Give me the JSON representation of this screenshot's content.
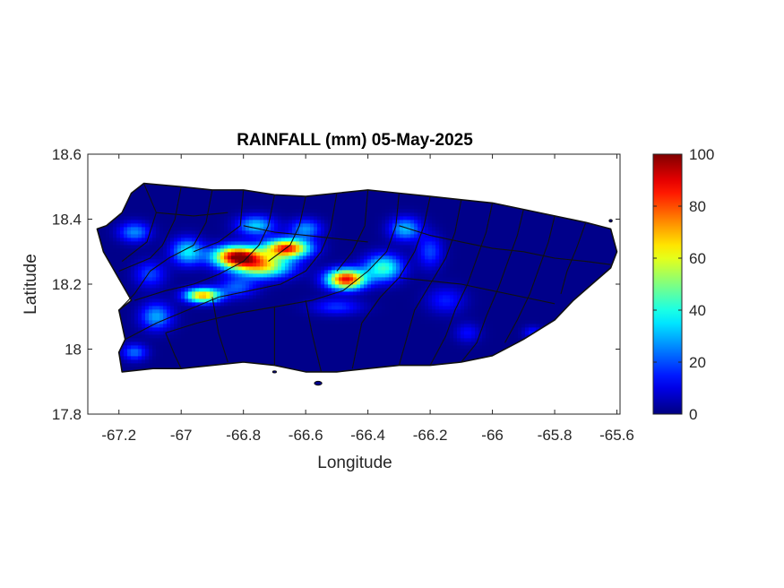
{
  "chart_data": {
    "type": "heatmap",
    "title": "RAINFALL (mm) 05-May-2025",
    "xlabel": "Longitude",
    "ylabel": "Latitude",
    "xlim": [
      -67.3,
      -65.59
    ],
    "ylim": [
      17.8,
      18.6
    ],
    "xticks": [
      -67.2,
      -67,
      -66.8,
      -66.6,
      -66.4,
      -66.2,
      -66,
      -65.8,
      -65.6
    ],
    "xtick_labels": [
      "-67.2",
      "-67",
      "-66.8",
      "-66.6",
      "-66.4",
      "-66.2",
      "-66",
      "-65.8",
      "-65.6"
    ],
    "yticks": [
      17.8,
      18,
      18.2,
      18.4,
      18.6
    ],
    "ytick_labels": [
      "17.8",
      "18",
      "18.2",
      "18.4",
      "18.6"
    ],
    "colorbar": {
      "colormap": "jet",
      "limits": [
        0,
        100
      ],
      "ticks": [
        0,
        20,
        40,
        60,
        80,
        100
      ],
      "tick_labels": [
        "0",
        "20",
        "40",
        "60",
        "80",
        "100"
      ],
      "location": "right"
    },
    "background_value": 1,
    "rain_centers": [
      {
        "lon": -66.82,
        "lat": 18.285,
        "value": 92,
        "spread_lon": 0.075,
        "spread_lat": 0.032
      },
      {
        "lon": -66.66,
        "lat": 18.31,
        "value": 85,
        "spread_lon": 0.07,
        "spread_lat": 0.028
      },
      {
        "lon": -66.74,
        "lat": 18.255,
        "value": 60,
        "spread_lon": 0.09,
        "spread_lat": 0.035
      },
      {
        "lon": -66.47,
        "lat": 18.215,
        "value": 88,
        "spread_lon": 0.06,
        "spread_lat": 0.03
      },
      {
        "lon": -66.35,
        "lat": 18.25,
        "value": 42,
        "spread_lon": 0.06,
        "spread_lat": 0.04
      },
      {
        "lon": -66.93,
        "lat": 18.165,
        "value": 70,
        "spread_lon": 0.055,
        "spread_lat": 0.022
      },
      {
        "lon": -66.98,
        "lat": 18.3,
        "value": 35,
        "spread_lon": 0.05,
        "spread_lat": 0.04
      },
      {
        "lon": -66.76,
        "lat": 18.38,
        "value": 32,
        "spread_lon": 0.06,
        "spread_lat": 0.03
      },
      {
        "lon": -66.6,
        "lat": 18.37,
        "value": 26,
        "spread_lon": 0.05,
        "spread_lat": 0.03
      },
      {
        "lon": -66.28,
        "lat": 18.37,
        "value": 30,
        "spread_lon": 0.05,
        "spread_lat": 0.035
      },
      {
        "lon": -66.2,
        "lat": 18.3,
        "value": 18,
        "spread_lon": 0.04,
        "spread_lat": 0.05
      },
      {
        "lon": -67.15,
        "lat": 18.36,
        "value": 25,
        "spread_lon": 0.05,
        "spread_lat": 0.03
      },
      {
        "lon": -67.1,
        "lat": 18.23,
        "value": 18,
        "spread_lon": 0.05,
        "spread_lat": 0.04
      },
      {
        "lon": -67.08,
        "lat": 18.1,
        "value": 28,
        "spread_lon": 0.05,
        "spread_lat": 0.04
      },
      {
        "lon": -66.82,
        "lat": 18.19,
        "value": 20,
        "spread_lon": 0.06,
        "spread_lat": 0.03
      },
      {
        "lon": -66.5,
        "lat": 18.13,
        "value": 16,
        "spread_lon": 0.08,
        "spread_lat": 0.025
      },
      {
        "lon": -66.15,
        "lat": 18.15,
        "value": 14,
        "spread_lon": 0.06,
        "spread_lat": 0.04
      },
      {
        "lon": -65.87,
        "lat": 18.05,
        "value": 14,
        "spread_lon": 0.03,
        "spread_lat": 0.02
      },
      {
        "lon": -67.15,
        "lat": 17.99,
        "value": 22,
        "spread_lon": 0.04,
        "spread_lat": 0.025
      },
      {
        "lon": -66.08,
        "lat": 18.05,
        "value": 12,
        "spread_lon": 0.04,
        "spread_lat": 0.03
      }
    ],
    "island_outline": [
      [
        -67.27,
        18.37
      ],
      [
        -67.24,
        18.38
      ],
      [
        -67.19,
        18.42
      ],
      [
        -67.16,
        18.48
      ],
      [
        -67.12,
        18.51
      ],
      [
        -67.0,
        18.5
      ],
      [
        -66.9,
        18.49
      ],
      [
        -66.8,
        18.49
      ],
      [
        -66.7,
        18.475
      ],
      [
        -66.6,
        18.47
      ],
      [
        -66.5,
        18.48
      ],
      [
        -66.4,
        18.49
      ],
      [
        -66.3,
        18.48
      ],
      [
        -66.2,
        18.47
      ],
      [
        -66.1,
        18.46
      ],
      [
        -66.0,
        18.45
      ],
      [
        -65.9,
        18.43
      ],
      [
        -65.8,
        18.41
      ],
      [
        -65.7,
        18.39
      ],
      [
        -65.62,
        18.37
      ],
      [
        -65.6,
        18.3
      ],
      [
        -65.62,
        18.25
      ],
      [
        -65.68,
        18.2
      ],
      [
        -65.74,
        18.15
      ],
      [
        -65.8,
        18.09
      ],
      [
        -65.9,
        18.03
      ],
      [
        -66.0,
        17.98
      ],
      [
        -66.1,
        17.96
      ],
      [
        -66.2,
        17.95
      ],
      [
        -66.3,
        17.95
      ],
      [
        -66.4,
        17.94
      ],
      [
        -66.5,
        17.93
      ],
      [
        -66.6,
        17.93
      ],
      [
        -66.7,
        17.95
      ],
      [
        -66.8,
        17.96
      ],
      [
        -66.9,
        17.95
      ],
      [
        -67.0,
        17.94
      ],
      [
        -67.09,
        17.94
      ],
      [
        -67.19,
        17.93
      ],
      [
        -67.2,
        17.99
      ],
      [
        -67.18,
        18.03
      ],
      [
        -67.2,
        18.12
      ],
      [
        -67.16,
        18.15
      ],
      [
        -67.19,
        18.2
      ],
      [
        -67.22,
        18.25
      ],
      [
        -67.25,
        18.3
      ]
    ],
    "municipal_boundaries": [
      [
        [
          -67.12,
          18.51
        ],
        [
          -67.08,
          18.42
        ],
        [
          -67.11,
          18.33
        ],
        [
          -67.19,
          18.27
        ]
      ],
      [
        [
          -67.0,
          18.5
        ],
        [
          -67.02,
          18.4
        ],
        [
          -67.06,
          18.32
        ],
        [
          -67.1,
          18.28
        ],
        [
          -67.2,
          18.24
        ]
      ],
      [
        [
          -66.9,
          18.49
        ],
        [
          -66.92,
          18.39
        ],
        [
          -66.96,
          18.32
        ],
        [
          -67.04,
          18.28
        ],
        [
          -67.1,
          18.24
        ],
        [
          -67.15,
          18.17
        ],
        [
          -67.2,
          18.12
        ]
      ],
      [
        [
          -66.8,
          18.49
        ],
        [
          -66.81,
          18.38
        ],
        [
          -66.88,
          18.33
        ],
        [
          -66.96,
          18.3
        ]
      ],
      [
        [
          -66.7,
          18.475
        ],
        [
          -66.72,
          18.38
        ],
        [
          -66.75,
          18.32
        ],
        [
          -66.8,
          18.27
        ],
        [
          -66.88,
          18.23
        ],
        [
          -66.96,
          18.2
        ],
        [
          -67.05,
          18.18
        ],
        [
          -67.15,
          18.15
        ]
      ],
      [
        [
          -66.6,
          18.47
        ],
        [
          -66.62,
          18.38
        ],
        [
          -66.65,
          18.32
        ],
        [
          -66.72,
          18.27
        ]
      ],
      [
        [
          -66.5,
          18.48
        ],
        [
          -66.52,
          18.37
        ],
        [
          -66.55,
          18.3
        ],
        [
          -66.6,
          18.24
        ],
        [
          -66.68,
          18.2
        ],
        [
          -66.78,
          18.18
        ],
        [
          -66.88,
          18.16
        ],
        [
          -66.98,
          18.12
        ],
        [
          -67.08,
          18.08
        ],
        [
          -67.18,
          18.03
        ]
      ],
      [
        [
          -66.4,
          18.49
        ],
        [
          -66.41,
          18.38
        ],
        [
          -66.45,
          18.3
        ],
        [
          -66.5,
          18.24
        ]
      ],
      [
        [
          -66.3,
          18.48
        ],
        [
          -66.31,
          18.38
        ],
        [
          -66.34,
          18.3
        ],
        [
          -66.4,
          18.24
        ],
        [
          -66.48,
          18.18
        ],
        [
          -66.58,
          18.15
        ],
        [
          -66.7,
          18.13
        ],
        [
          -66.82,
          18.11
        ],
        [
          -66.95,
          18.08
        ],
        [
          -67.05,
          18.05
        ]
      ],
      [
        [
          -66.2,
          18.47
        ],
        [
          -66.22,
          18.38
        ],
        [
          -66.25,
          18.3
        ],
        [
          -66.3,
          18.22
        ],
        [
          -66.36,
          18.16
        ],
        [
          -66.42,
          18.08
        ],
        [
          -66.45,
          17.94
        ]
      ],
      [
        [
          -66.1,
          18.46
        ],
        [
          -66.12,
          18.36
        ],
        [
          -66.15,
          18.28
        ],
        [
          -66.2,
          18.2
        ],
        [
          -66.25,
          18.12
        ],
        [
          -66.3,
          17.95
        ]
      ],
      [
        [
          -66.0,
          18.45
        ],
        [
          -66.02,
          18.36
        ],
        [
          -66.05,
          18.28
        ],
        [
          -66.08,
          18.2
        ],
        [
          -66.12,
          18.12
        ],
        [
          -66.15,
          18.04
        ],
        [
          -66.2,
          17.95
        ]
      ],
      [
        [
          -65.9,
          18.43
        ],
        [
          -65.92,
          18.35
        ],
        [
          -65.95,
          18.27
        ],
        [
          -65.98,
          18.19
        ],
        [
          -66.02,
          18.1
        ],
        [
          -66.05,
          18.02
        ],
        [
          -66.1,
          17.96
        ]
      ],
      [
        [
          -65.8,
          18.41
        ],
        [
          -65.82,
          18.33
        ],
        [
          -65.85,
          18.25
        ],
        [
          -65.88,
          18.17
        ],
        [
          -65.92,
          18.09
        ],
        [
          -65.96,
          18.02
        ]
      ],
      [
        [
          -65.7,
          18.39
        ],
        [
          -65.73,
          18.31
        ],
        [
          -65.76,
          18.24
        ],
        [
          -65.78,
          18.17
        ]
      ],
      [
        [
          -66.9,
          18.16
        ],
        [
          -66.88,
          18.05
        ],
        [
          -66.85,
          17.96
        ]
      ],
      [
        [
          -66.7,
          18.13
        ],
        [
          -66.7,
          18.04
        ],
        [
          -66.7,
          17.95
        ]
      ],
      [
        [
          -66.6,
          18.15
        ],
        [
          -66.58,
          18.05
        ],
        [
          -66.55,
          17.93
        ]
      ],
      [
        [
          -67.05,
          18.05
        ],
        [
          -67.02,
          17.98
        ],
        [
          -67.0,
          17.94
        ]
      ],
      [
        [
          -66.3,
          18.38
        ],
        [
          -66.2,
          18.35
        ],
        [
          -66.1,
          18.33
        ],
        [
          -66.0,
          18.31
        ],
        [
          -65.9,
          18.3
        ],
        [
          -65.8,
          18.28
        ],
        [
          -65.7,
          18.27
        ],
        [
          -65.62,
          18.26
        ]
      ],
      [
        [
          -66.3,
          18.22
        ],
        [
          -66.2,
          18.21
        ],
        [
          -66.1,
          18.2
        ],
        [
          -66.0,
          18.18
        ],
        [
          -65.9,
          18.16
        ],
        [
          -65.8,
          18.14
        ]
      ],
      [
        [
          -66.8,
          18.38
        ],
        [
          -66.7,
          18.36
        ],
        [
          -66.6,
          18.35
        ],
        [
          -66.5,
          18.34
        ],
        [
          -66.4,
          18.33
        ]
      ],
      [
        [
          -67.08,
          18.42
        ],
        [
          -66.96,
          18.41
        ],
        [
          -66.85,
          18.42
        ]
      ]
    ],
    "islets": [
      {
        "lon": -66.56,
        "lat": 17.895,
        "rlon": 0.012,
        "rlat": 0.006
      },
      {
        "lon": -65.62,
        "lat": 18.395,
        "rlon": 0.005,
        "rlat": 0.004
      },
      {
        "lon": -66.7,
        "lat": 17.93,
        "rlon": 0.006,
        "rlat": 0.003
      }
    ]
  }
}
